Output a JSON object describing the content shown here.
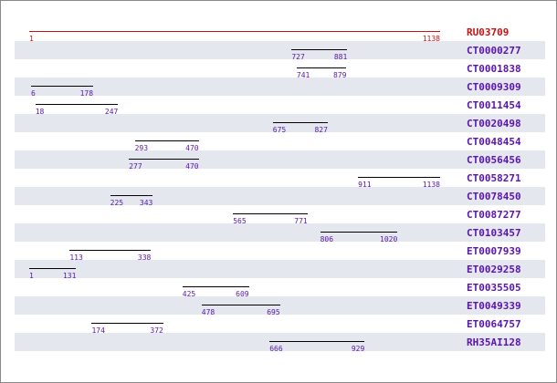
{
  "reference": {
    "name": "RU03709",
    "start": "1",
    "end": "1138",
    "color": "#cc1111"
  },
  "scale": {
    "min": 1,
    "max": 1138
  },
  "colors": {
    "hit_text": "#5a12b0",
    "hit_bar": "#000000",
    "row_shade": "#e4e8ee"
  },
  "hits": [
    {
      "name": "CT0000277",
      "start": "727",
      "end": "881"
    },
    {
      "name": "CT0001838",
      "start": "741",
      "end": "879"
    },
    {
      "name": "CT0009309",
      "start": "6",
      "end": "178"
    },
    {
      "name": "CT0011454",
      "start": "18",
      "end": "247"
    },
    {
      "name": "CT0020498",
      "start": "675",
      "end": "827"
    },
    {
      "name": "CT0048454",
      "start": "293",
      "end": "470"
    },
    {
      "name": "CT0056456",
      "start": "277",
      "end": "470"
    },
    {
      "name": "CT0058271",
      "start": "911",
      "end": "1138"
    },
    {
      "name": "CT0078450",
      "start": "225",
      "end": "343"
    },
    {
      "name": "CT0087277",
      "start": "565",
      "end": "771"
    },
    {
      "name": "CT0103457",
      "start": "806",
      "end": "1020"
    },
    {
      "name": "ET0007939",
      "start": "113",
      "end": "338"
    },
    {
      "name": "ET0029258",
      "start": "1",
      "end": "131"
    },
    {
      "name": "ET0035505",
      "start": "425",
      "end": "609"
    },
    {
      "name": "ET0049339",
      "start": "478",
      "end": "695"
    },
    {
      "name": "ET0064757",
      "start": "174",
      "end": "372"
    },
    {
      "name": "RH35AI128",
      "start": "666",
      "end": "929"
    }
  ]
}
